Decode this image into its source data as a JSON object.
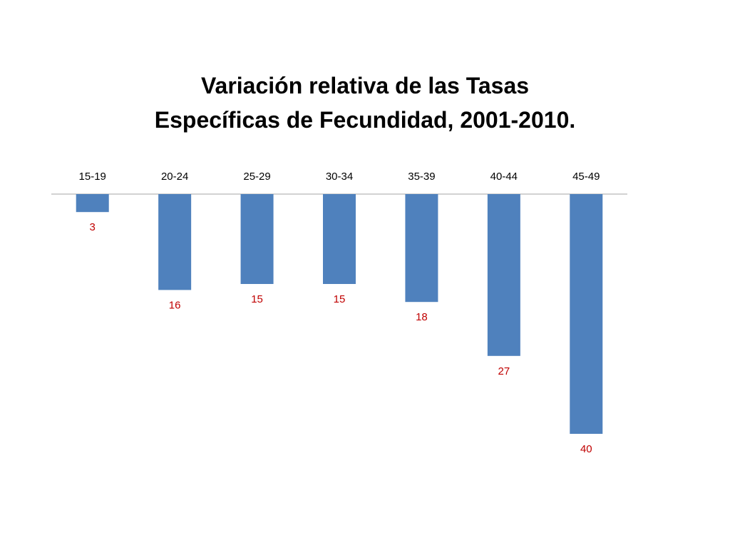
{
  "chart_data": {
    "type": "bar",
    "title_lines": [
      "Variación relativa de las Tasas",
      "Específicas de Fecundidad, 2001-2010."
    ],
    "categories": [
      "15-19",
      "20-24",
      "25-29",
      "30-34",
      "35-39",
      "40-44",
      "45-49"
    ],
    "values": [
      -3,
      -16,
      -15,
      -15,
      -18,
      -27,
      -40
    ],
    "data_labels": [
      "3",
      "16",
      "15",
      "15",
      "18",
      "27",
      "40"
    ],
    "xlabel": "",
    "ylabel": "",
    "ylim": [
      -40,
      0
    ],
    "grid": false,
    "legend": "none",
    "category_axis_position": "top",
    "colors": {
      "bar": "#4F81BD",
      "data_label": "#C00000",
      "axis": "#A6A6A6",
      "tick_label": "#000000"
    }
  }
}
